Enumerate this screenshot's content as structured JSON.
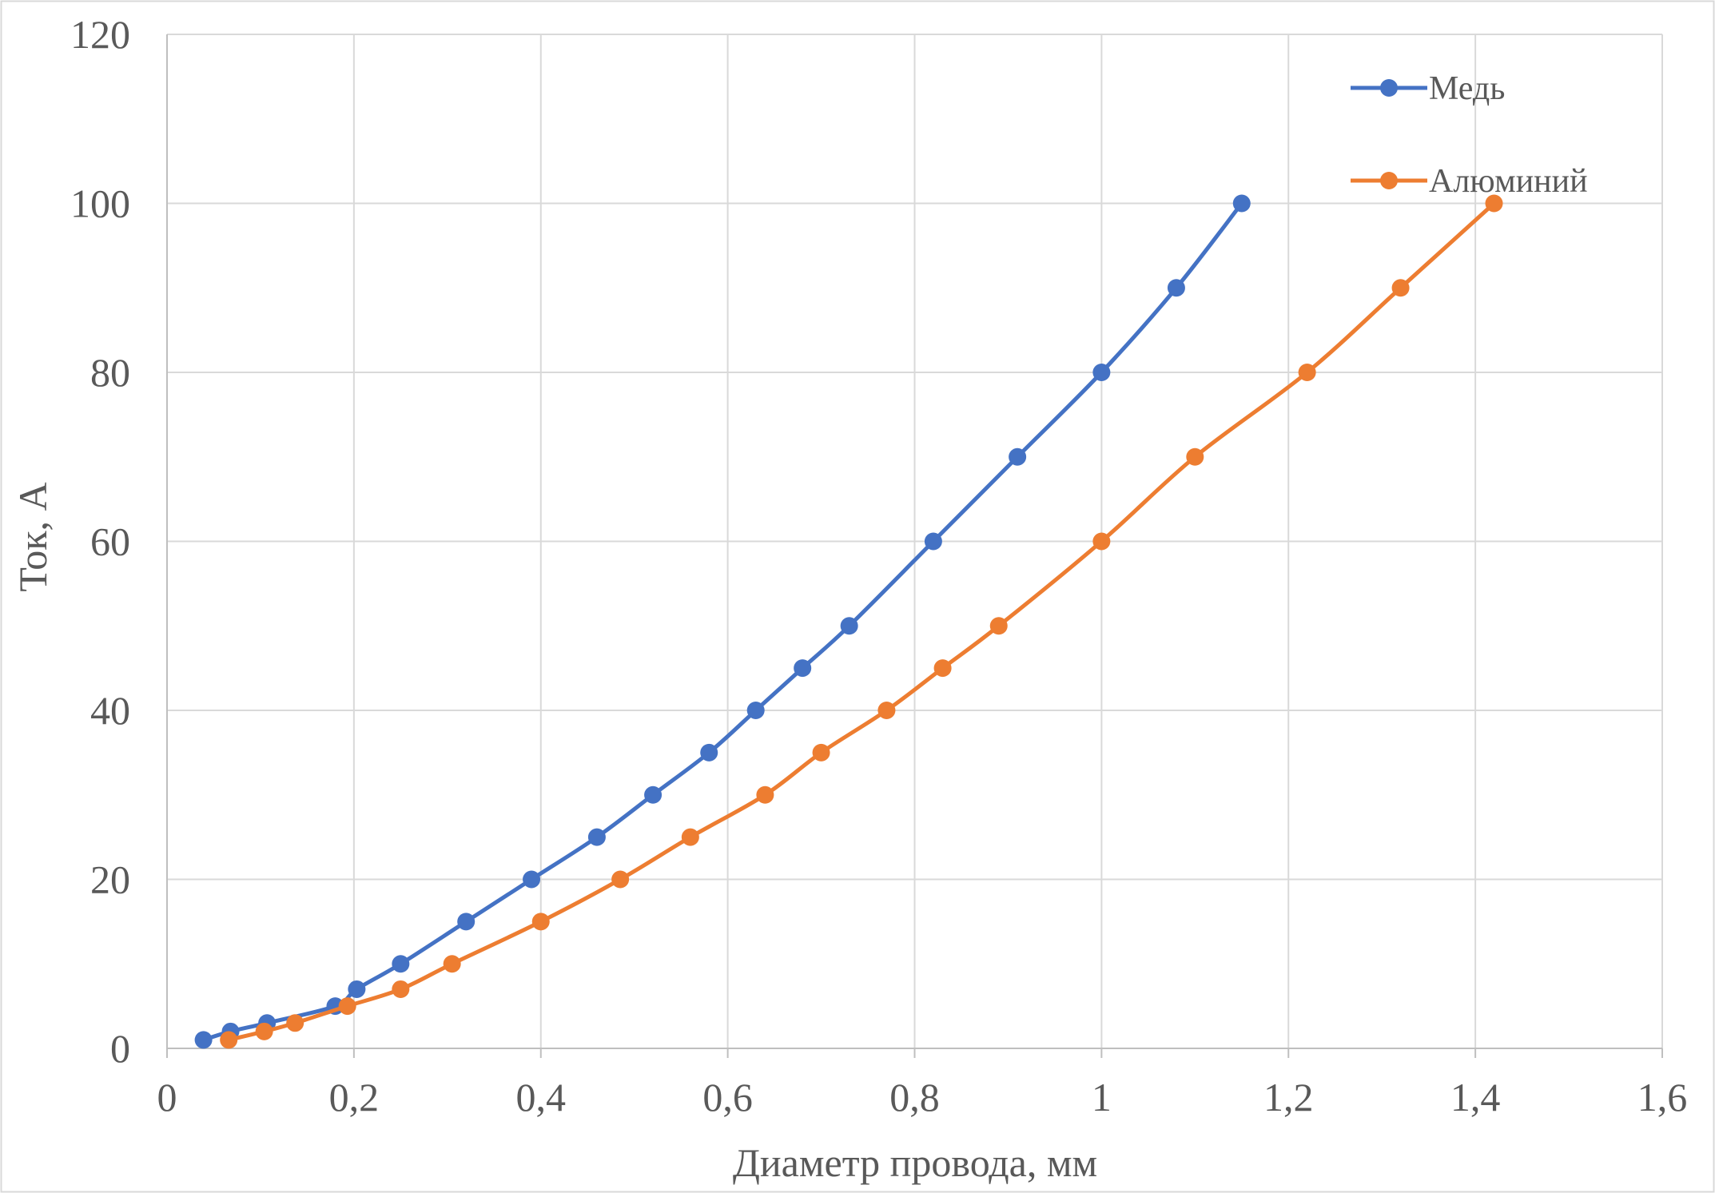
{
  "chart_data": {
    "type": "line",
    "xlabel": "Диаметр провода, мм",
    "ylabel": "Ток, А",
    "xlim": [
      0,
      1.6
    ],
    "ylim": [
      0,
      120
    ],
    "x_ticks": [
      0,
      0.2,
      0.4,
      0.6,
      0.8,
      1,
      1.2,
      1.4,
      1.6
    ],
    "x_tick_labels": [
      "0",
      "0,2",
      "0,4",
      "0,6",
      "0,8",
      "1",
      "1,2",
      "1,4",
      "1,6"
    ],
    "y_ticks": [
      0,
      20,
      40,
      60,
      80,
      100,
      120
    ],
    "y_tick_labels": [
      "0",
      "20",
      "40",
      "60",
      "80",
      "100",
      "120"
    ],
    "grid": true,
    "legend_position": "top-right",
    "series": [
      {
        "name": "Медь",
        "color": "#4472C4",
        "points": [
          [
            0.039,
            1
          ],
          [
            0.068,
            2
          ],
          [
            0.107,
            3
          ],
          [
            0.18,
            5
          ],
          [
            0.203,
            7
          ],
          [
            0.25,
            10
          ],
          [
            0.32,
            15
          ],
          [
            0.39,
            20
          ],
          [
            0.46,
            25
          ],
          [
            0.52,
            30
          ],
          [
            0.58,
            35
          ],
          [
            0.63,
            40
          ],
          [
            0.68,
            45
          ],
          [
            0.73,
            50
          ],
          [
            0.82,
            60
          ],
          [
            0.91,
            70
          ],
          [
            1.0,
            80
          ],
          [
            1.08,
            90
          ],
          [
            1.15,
            100
          ]
        ]
      },
      {
        "name": "Алюминий",
        "color": "#ED7D31",
        "points": [
          [
            0.066,
            1
          ],
          [
            0.104,
            2
          ],
          [
            0.137,
            3
          ],
          [
            0.193,
            5
          ],
          [
            0.25,
            7
          ],
          [
            0.305,
            10
          ],
          [
            0.4,
            15
          ],
          [
            0.485,
            20
          ],
          [
            0.56,
            25
          ],
          [
            0.64,
            30
          ],
          [
            0.7,
            35
          ],
          [
            0.77,
            40
          ],
          [
            0.83,
            45
          ],
          [
            0.89,
            50
          ],
          [
            1.0,
            60
          ],
          [
            1.1,
            70
          ],
          [
            1.22,
            80
          ],
          [
            1.32,
            90
          ],
          [
            1.42,
            100
          ]
        ]
      }
    ]
  }
}
